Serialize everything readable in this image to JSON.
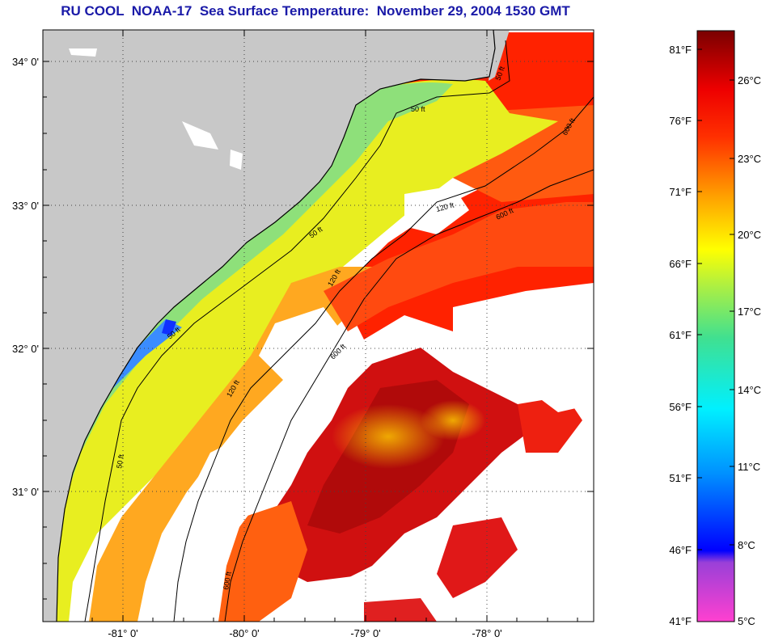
{
  "title": "RU COOL  NOAA-17  Sea Surface Temperature:  November 29, 2004 1530 GMT",
  "map": {
    "lat_labels": [
      "34° 0'",
      "33° 0'",
      "32° 0'",
      "31° 0'"
    ],
    "lon_labels": [
      "-81° 0'",
      "-80° 0'",
      "-79° 0'",
      "-78° 0'"
    ],
    "contour_labels": [
      "50 ft",
      "50 ft",
      "50 ft",
      "50 ft",
      "120 ft",
      "120 ft",
      "120 ft",
      "600 ft",
      "600 ft",
      "600 ft",
      "50 ft",
      "600 ft"
    ],
    "colors": {
      "land": "#c8c8c8",
      "no_data": "#ffffff",
      "cold_coastal": "#7fe08c",
      "shelf": "#e8f020",
      "warm": "#ff6a10",
      "gulf_stream": "#c81010"
    }
  },
  "colorbar": {
    "fahrenheit": [
      "81°F",
      "76°F",
      "71°F",
      "66°F",
      "61°F",
      "56°F",
      "51°F",
      "46°F",
      "41°F"
    ],
    "celsius": [
      "26°C",
      "23°C",
      "20°C",
      "17°C",
      "14°C",
      "11°C",
      "8°C",
      "5°C"
    ],
    "scale_colors": [
      "#ff40d0",
      "#7a3fcf",
      "#0000ff",
      "#0090ff",
      "#00f0ff",
      "#40e0a0",
      "#a0f040",
      "#ffff00",
      "#ffa000",
      "#ff4000",
      "#ff0000",
      "#c00000",
      "#7a0000"
    ]
  }
}
